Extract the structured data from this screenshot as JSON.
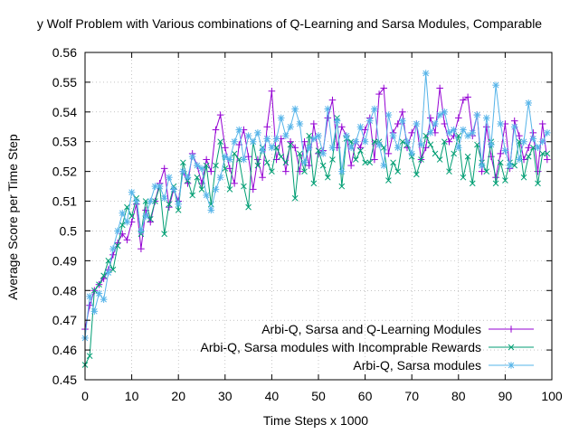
{
  "chart_data": {
    "type": "line",
    "title": "y Wolf Problem with Various combinations of Q-Learning and Sarsa Modules, Comparable",
    "xlabel": "Time Steps x 1000",
    "ylabel": "Average Score per Time Step",
    "xlim": [
      0,
      100
    ],
    "ylim": [
      0.45,
      0.56
    ],
    "xticks": [
      0,
      10,
      20,
      30,
      40,
      50,
      60,
      70,
      80,
      90,
      100
    ],
    "yticks": [
      0.45,
      0.46,
      0.47,
      0.48,
      0.49,
      0.5,
      0.51,
      0.52,
      0.53,
      0.54,
      0.55,
      0.56
    ],
    "xtick_labels": [
      "0",
      "10",
      "20",
      "30",
      "40",
      "50",
      "60",
      "70",
      "80",
      "90",
      "100"
    ],
    "ytick_labels": [
      "0.45",
      "0.46",
      "0.47",
      "0.48",
      "0.49",
      "0.5",
      "0.51",
      "0.52",
      "0.53",
      "0.54",
      "0.55",
      "0.56"
    ],
    "grid": true,
    "legend_position": "bottom-right",
    "x": [
      0,
      1,
      2,
      3,
      4,
      5,
      6,
      7,
      8,
      9,
      10,
      11,
      12,
      13,
      14,
      15,
      16,
      17,
      18,
      19,
      20,
      21,
      22,
      23,
      24,
      25,
      26,
      27,
      28,
      29,
      30,
      31,
      32,
      33,
      34,
      35,
      36,
      37,
      38,
      39,
      40,
      41,
      42,
      43,
      44,
      45,
      46,
      47,
      48,
      49,
      50,
      51,
      52,
      53,
      54,
      55,
      56,
      57,
      58,
      59,
      60,
      61,
      62,
      63,
      64,
      65,
      66,
      67,
      68,
      69,
      70,
      71,
      72,
      73,
      74,
      75,
      76,
      77,
      78,
      79,
      80,
      81,
      82,
      83,
      84,
      85,
      86,
      87,
      88,
      89,
      90,
      91,
      92,
      93,
      94,
      95,
      96,
      97,
      98,
      99
    ],
    "series": [
      {
        "name": "Arbi-Q, Sarsa and Q-Learning Modules",
        "color": "#9400d3",
        "marker": "plus",
        "values": [
          0.467,
          0.475,
          0.48,
          0.482,
          0.484,
          0.487,
          0.492,
          0.496,
          0.499,
          0.497,
          0.503,
          0.509,
          0.494,
          0.507,
          0.503,
          0.51,
          0.516,
          0.521,
          0.508,
          0.514,
          0.51,
          0.52,
          0.516,
          0.526,
          0.522,
          0.516,
          0.524,
          0.52,
          0.534,
          0.539,
          0.528,
          0.521,
          0.516,
          0.529,
          0.534,
          0.525,
          0.514,
          0.524,
          0.518,
          0.535,
          0.547,
          0.524,
          0.531,
          0.52,
          0.53,
          0.528,
          0.52,
          0.53,
          0.522,
          0.536,
          0.526,
          0.527,
          0.538,
          0.544,
          0.528,
          0.535,
          0.532,
          0.522,
          0.53,
          0.528,
          0.534,
          0.538,
          0.524,
          0.546,
          0.548,
          0.526,
          0.533,
          0.536,
          0.54,
          0.528,
          0.533,
          0.536,
          0.524,
          0.528,
          0.538,
          0.533,
          0.548,
          0.536,
          0.53,
          0.532,
          0.538,
          0.544,
          0.545,
          0.532,
          0.539,
          0.52,
          0.535,
          0.525,
          0.518,
          0.526,
          0.536,
          0.521,
          0.537,
          0.532,
          0.524,
          0.528,
          0.533,
          0.52,
          0.536,
          0.524
        ]
      },
      {
        "name": "Arbi-Q, Sarsa modules with Incomprable Rewards",
        "color": "#009e73",
        "marker": "cross",
        "values": [
          0.455,
          0.458,
          0.48,
          0.482,
          0.485,
          0.49,
          0.487,
          0.495,
          0.502,
          0.508,
          0.505,
          0.511,
          0.499,
          0.51,
          0.504,
          0.51,
          0.515,
          0.499,
          0.509,
          0.515,
          0.507,
          0.523,
          0.517,
          0.512,
          0.518,
          0.514,
          0.522,
          0.509,
          0.522,
          0.53,
          0.521,
          0.514,
          0.526,
          0.524,
          0.515,
          0.508,
          0.53,
          0.522,
          0.528,
          0.523,
          0.52,
          0.528,
          0.525,
          0.523,
          0.529,
          0.511,
          0.526,
          0.52,
          0.532,
          0.516,
          0.527,
          0.522,
          0.518,
          0.524,
          0.538,
          0.515,
          0.531,
          0.53,
          0.524,
          0.527,
          0.523,
          0.523,
          0.53,
          0.53,
          0.528,
          0.517,
          0.523,
          0.52,
          0.53,
          0.529,
          0.525,
          0.519,
          0.524,
          0.532,
          0.529,
          0.526,
          0.524,
          0.53,
          0.52,
          0.526,
          0.532,
          0.518,
          0.525,
          0.516,
          0.529,
          0.523,
          0.52,
          0.53,
          0.516,
          0.523,
          0.517,
          0.523,
          0.522,
          0.53,
          0.518,
          0.525,
          0.528,
          0.516,
          0.526,
          0.526
        ]
      },
      {
        "name": "Arbi-Q, Sarsa modules",
        "color": "#56b4e9",
        "marker": "star",
        "values": [
          0.464,
          0.478,
          0.473,
          0.479,
          0.477,
          0.486,
          0.494,
          0.5,
          0.506,
          0.503,
          0.513,
          0.51,
          0.5,
          0.505,
          0.51,
          0.515,
          0.515,
          0.511,
          0.518,
          0.514,
          0.509,
          0.52,
          0.518,
          0.525,
          0.522,
          0.521,
          0.512,
          0.507,
          0.514,
          0.518,
          0.525,
          0.524,
          0.53,
          0.534,
          0.524,
          0.532,
          0.53,
          0.533,
          0.527,
          0.531,
          0.528,
          0.531,
          0.538,
          0.532,
          0.535,
          0.541,
          0.536,
          0.523,
          0.528,
          0.531,
          0.532,
          0.526,
          0.541,
          0.528,
          0.537,
          0.52,
          0.532,
          0.528,
          0.53,
          0.535,
          0.53,
          0.537,
          0.541,
          0.529,
          0.522,
          0.539,
          0.532,
          0.528,
          0.537,
          0.53,
          0.526,
          0.536,
          0.529,
          0.553,
          0.533,
          0.536,
          0.539,
          0.54,
          0.533,
          0.534,
          0.528,
          0.534,
          0.532,
          0.533,
          0.539,
          0.522,
          0.538,
          0.529,
          0.549,
          0.536,
          0.527,
          0.522,
          0.535,
          0.524,
          0.53,
          0.543,
          0.531,
          0.528,
          0.53,
          0.533
        ]
      }
    ]
  }
}
